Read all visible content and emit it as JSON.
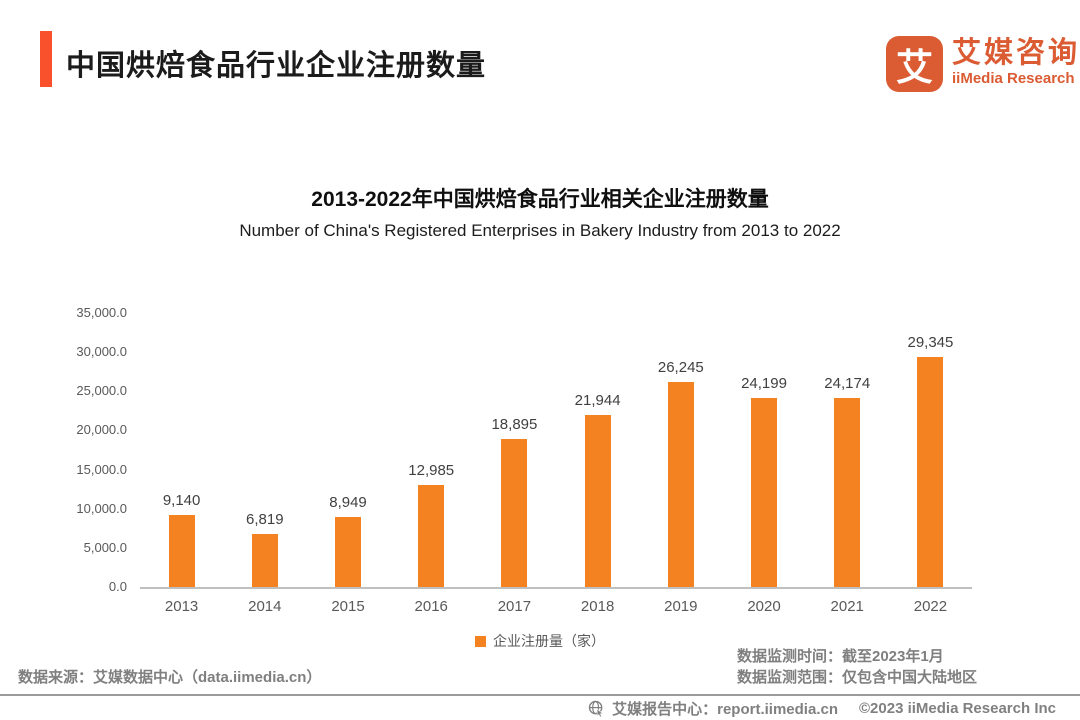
{
  "header": {
    "title": "中国烘焙食品行业企业注册数量",
    "logo": {
      "mark": "艾",
      "name_cn": "艾媒咨询",
      "name_en": "iiMedia Research"
    }
  },
  "chart": {
    "title_cn": "2013-2022年中国烘焙食品行业相关企业注册数量",
    "title_en": "Number of China's Registered Enterprises in Bakery Industry from 2013 to 2022",
    "legend": "企业注册量（家）"
  },
  "chart_data": {
    "type": "bar",
    "title": "2013-2022年中国烘焙食品行业相关企业注册数量",
    "subtitle": "Number of China's Registered Enterprises in Bakery Industry from 2013 to 2022",
    "categories": [
      "2013",
      "2014",
      "2015",
      "2016",
      "2017",
      "2018",
      "2019",
      "2020",
      "2021",
      "2022"
    ],
    "values": [
      9140,
      6819,
      8949,
      12985,
      18895,
      21944,
      26245,
      24199,
      24174,
      29345
    ],
    "value_labels": [
      "9,140",
      "6,819",
      "8,949",
      "12,985",
      "18,895",
      "21,944",
      "26,245",
      "24,199",
      "24,174",
      "29,345"
    ],
    "y_ticks": [
      "35,000.0",
      "30,000.0",
      "25,000.0",
      "20,000.0",
      "15,000.0",
      "10,000.0",
      "5,000.0",
      "0.0"
    ],
    "ylim": [
      0,
      35000
    ],
    "xlabel": "",
    "ylabel": "",
    "grid": false,
    "legend": [
      "企业注册量（家）"
    ],
    "legend_position": "bottom",
    "bar_color": "#F58220"
  },
  "footer": {
    "source": "数据来源：艾媒数据中心（data.iimedia.cn）",
    "monitor_time": "数据监测时间：截至2023年1月",
    "monitor_scope": "数据监测范围：仅包含中国大陆地区"
  },
  "bottom_bar": {
    "report_center": "艾媒报告中心：report.iimedia.cn",
    "copyright": "©2023 iiMedia Research  Inc"
  },
  "colors": {
    "accent": "#F8512B",
    "logo": "#DB5B33",
    "bar": "#F58220",
    "gray_text": "#7F7F7F"
  }
}
